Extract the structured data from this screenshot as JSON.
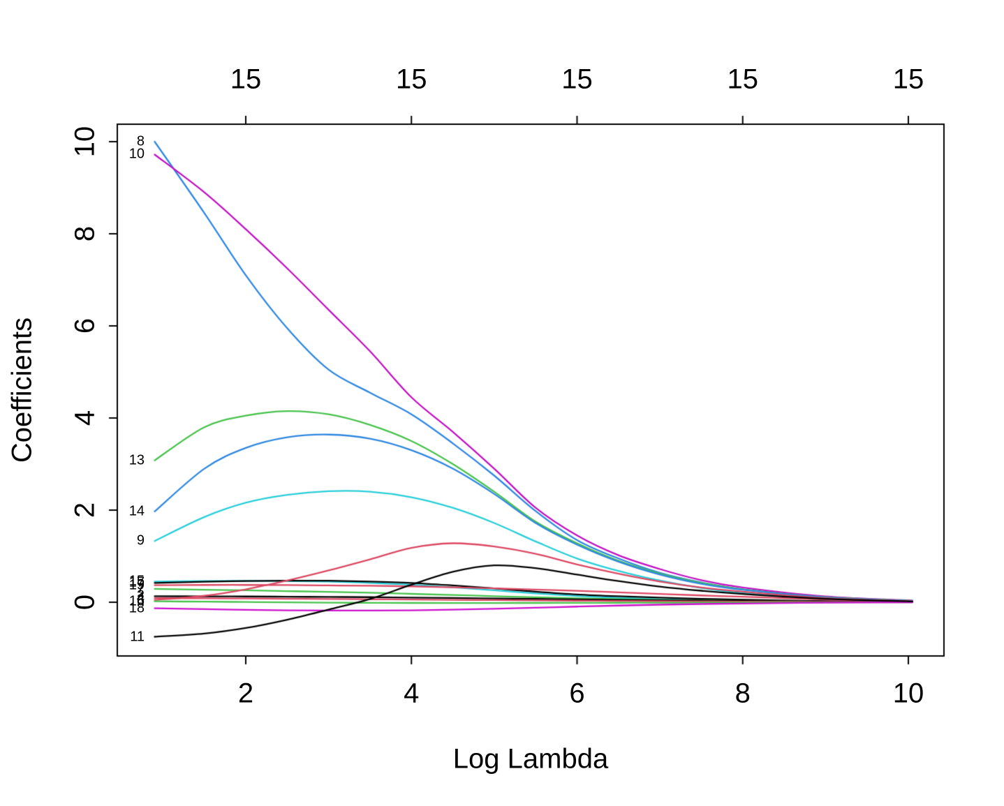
{
  "chart_data": {
    "type": "line",
    "title": "",
    "xlabel": "Log Lambda",
    "ylabel": "Coefficients",
    "x_axis": {
      "ticks": [
        2,
        4,
        6,
        8,
        10
      ]
    },
    "y_axis": {
      "ticks": [
        0,
        2,
        4,
        6,
        8,
        10
      ]
    },
    "top_axis": {
      "tick_labels": [
        "15",
        "15",
        "15",
        "15",
        "15"
      ]
    },
    "xlim": [
      0.45,
      10.43
    ],
    "ylim": [
      -1.17,
      10.38
    ],
    "grid": false,
    "legend_position": "none",
    "note": "Coefficient profile paths; each curve labeled by variable number at left edge; several labels overlap near zero and are partially illegible",
    "x": [
      0.9,
      1.5,
      2,
      2.5,
      3,
      3.5,
      4,
      4.5,
      5,
      5.5,
      6,
      6.5,
      7,
      7.5,
      8,
      9,
      10.05
    ],
    "series": [
      {
        "label": "8",
        "color": "#2e87e0",
        "values": [
          10.0,
          8.45,
          7.1,
          5.95,
          5.05,
          4.55,
          4.08,
          3.45,
          2.75,
          1.98,
          1.35,
          0.95,
          0.64,
          0.43,
          0.28,
          0.11,
          0.03
        ]
      },
      {
        "label": "10",
        "color": "#c011c1",
        "values": [
          9.72,
          8.9,
          8.1,
          7.25,
          6.35,
          5.45,
          4.45,
          3.7,
          2.9,
          2.05,
          1.45,
          1.02,
          0.72,
          0.48,
          0.32,
          0.125,
          0.035
        ]
      },
      {
        "label": "13",
        "color": "#46c24a",
        "values": [
          3.08,
          3.8,
          4.05,
          4.15,
          4.08,
          3.85,
          3.5,
          3.0,
          2.4,
          1.75,
          1.28,
          0.9,
          0.62,
          0.42,
          0.28,
          0.11,
          0.03
        ]
      },
      {
        "label": "14",
        "color": "#2e87e0",
        "values": [
          1.97,
          2.9,
          3.35,
          3.58,
          3.64,
          3.55,
          3.3,
          2.9,
          2.35,
          1.72,
          1.25,
          0.88,
          0.6,
          0.4,
          0.27,
          0.105,
          0.028
        ]
      },
      {
        "label": "9",
        "color": "#28ced8",
        "values": [
          1.33,
          1.85,
          2.16,
          2.33,
          2.41,
          2.4,
          2.28,
          2.05,
          1.72,
          1.32,
          0.95,
          0.68,
          0.47,
          0.31,
          0.2,
          0.075,
          0.02
        ]
      },
      {
        "label": "15",
        "color": "#28ced8",
        "label_overlapping": true,
        "values": [
          0.45,
          0.46,
          0.465,
          0.46,
          0.45,
          0.42,
          0.38,
          0.325,
          0.26,
          0.19,
          0.135,
          0.095,
          0.065,
          0.045,
          0.03,
          0.012,
          0.003
        ]
      },
      {
        "label": "17",
        "color": "#000000",
        "label_overlapping": true,
        "values": [
          0.42,
          0.445,
          0.46,
          0.468,
          0.467,
          0.45,
          0.42,
          0.365,
          0.3,
          0.23,
          0.17,
          0.13,
          0.1,
          0.075,
          0.055,
          0.025,
          0.006
        ]
      },
      {
        "label": "19",
        "color": "#dc4762",
        "label_overlapping": true,
        "values": [
          0.37,
          0.375,
          0.375,
          0.372,
          0.365,
          0.357,
          0.345,
          0.325,
          0.3,
          0.275,
          0.248,
          0.215,
          0.18,
          0.148,
          0.118,
          0.06,
          0.012
        ]
      },
      {
        "label": "7",
        "color": "#46c24a",
        "label_overlapping": true,
        "values": [
          0.29,
          0.272,
          0.258,
          0.242,
          0.225,
          0.205,
          0.182,
          0.158,
          0.132,
          0.108,
          0.085,
          0.066,
          0.05,
          0.038,
          0.028,
          0.012,
          0.003
        ]
      },
      {
        "label": "2",
        "color": "#000000",
        "label_overlapping": true,
        "values": [
          0.13,
          0.128,
          0.125,
          0.12,
          0.115,
          0.11,
          0.1,
          0.092,
          0.082,
          0.072,
          0.062,
          0.052,
          0.043,
          0.035,
          0.028,
          0.014,
          0.003
        ]
      },
      {
        "label": "4",
        "color": "#dc4762",
        "label_overlapping": true,
        "values": [
          0.09,
          0.085,
          0.08,
          0.075,
          0.07,
          0.064,
          0.058,
          0.052,
          0.046,
          0.04,
          0.034,
          0.028,
          0.023,
          0.018,
          0.014,
          0.006,
          0.001
        ]
      },
      {
        "label": "3",
        "color": "#dc4762",
        "label_overlapping": true,
        "values": [
          0.05,
          0.14,
          0.28,
          0.47,
          0.69,
          0.93,
          1.18,
          1.28,
          1.21,
          1.05,
          0.82,
          0.62,
          0.45,
          0.32,
          0.23,
          0.09,
          0.02
        ]
      },
      {
        "label": "16",
        "color": "#46c24a",
        "label_overlapping": true,
        "values": [
          0.02,
          0.012,
          0.005,
          -0.002,
          -0.008,
          -0.012,
          -0.015,
          -0.016,
          -0.016,
          -0.015,
          -0.013,
          -0.011,
          -0.009,
          -0.007,
          -0.005,
          -0.002,
          0.0
        ]
      },
      {
        "label": "18",
        "color": "#cc0ecc",
        "label_overlapping": true,
        "values": [
          -0.13,
          -0.15,
          -0.165,
          -0.175,
          -0.18,
          -0.18,
          -0.175,
          -0.162,
          -0.143,
          -0.12,
          -0.095,
          -0.072,
          -0.053,
          -0.038,
          -0.027,
          -0.01,
          -0.002
        ]
      },
      {
        "label": "11",
        "color": "#000000",
        "values": [
          -0.75,
          -0.68,
          -0.56,
          -0.38,
          -0.16,
          0.07,
          0.38,
          0.66,
          0.8,
          0.74,
          0.6,
          0.46,
          0.34,
          0.25,
          0.18,
          0.075,
          0.018
        ]
      }
    ]
  }
}
